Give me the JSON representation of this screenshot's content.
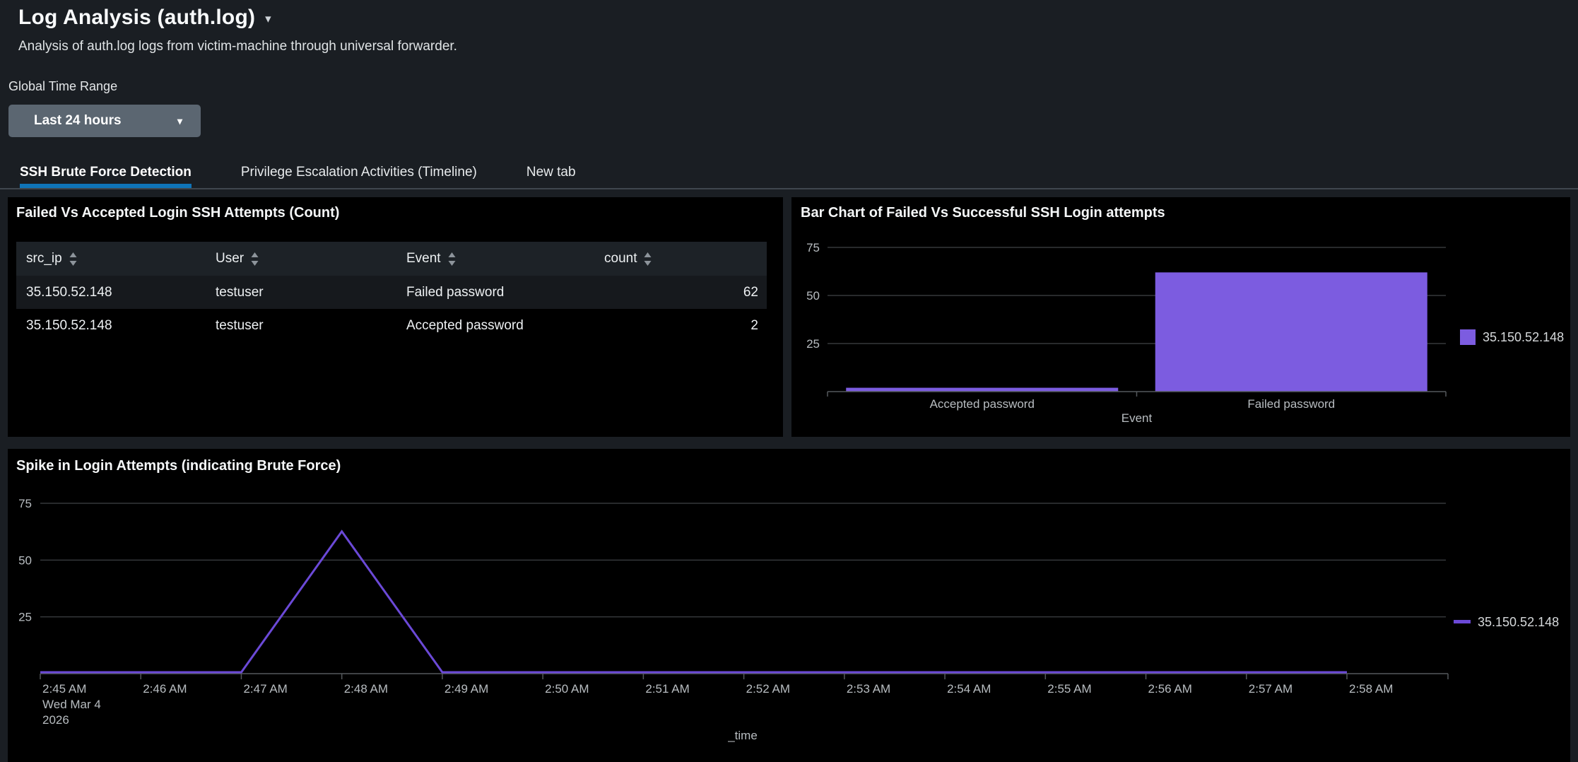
{
  "header": {
    "title": "Log Analysis (auth.log)",
    "subtitle": "Analysis of auth.log logs from victim-machine through universal forwarder.",
    "time_range_label": "Global Time Range",
    "time_range_value": "Last 24 hours"
  },
  "icons": {
    "title_caret": "▾",
    "dropdown_caret": "▾"
  },
  "tabs": [
    {
      "label": "SSH Brute Force Detection",
      "active": true
    },
    {
      "label": "Privilege Escalation Activities (Timeline)",
      "active": false
    },
    {
      "label": "New tab",
      "active": false
    }
  ],
  "colors": {
    "tab_accent_blue": "#0f74b8",
    "bar_purple": "#7c5ce0",
    "line_purple": "#6b49d7",
    "panel_background": "#000000",
    "page_background": "#1a1e23"
  },
  "panels": {
    "table_panel": {
      "title": "Failed Vs Accepted Login SSH Attempts (Count)",
      "columns": [
        "src_ip",
        "User",
        "Event",
        "count"
      ],
      "rows": [
        [
          "35.150.52.148",
          "testuser",
          "Failed password",
          "62"
        ],
        [
          "35.150.52.148",
          "testuser",
          "Accepted password",
          "2"
        ]
      ]
    }
  },
  "chart_data": [
    {
      "type": "bar",
      "title": "Bar Chart of Failed Vs Successful SSH Login attempts",
      "categories": [
        "Accepted password",
        "Failed password"
      ],
      "series": [
        {
          "name": "35.150.52.148",
          "values": [
            2,
            62
          ]
        }
      ],
      "xlabel": "Event",
      "ylabel": "",
      "yticks": [
        25,
        50,
        75
      ],
      "ylim": [
        0,
        80
      ],
      "grid": "horizontal",
      "legend_position": "right",
      "color": "#7c5ce0"
    },
    {
      "type": "line",
      "title": "Spike in Login Attempts (indicating Brute Force)",
      "x": [
        "2:45 AM",
        "2:46 AM",
        "2:47 AM",
        "2:48 AM",
        "2:49 AM",
        "2:50 AM",
        "2:51 AM",
        "2:52 AM",
        "2:53 AM",
        "2:54 AM",
        "2:55 AM",
        "2:56 AM",
        "2:57 AM",
        "2:58 AM"
      ],
      "x_date_label": [
        "Wed Mar 4",
        "2026"
      ],
      "series": [
        {
          "name": "35.150.52.148",
          "values": [
            0,
            0,
            0,
            62,
            0,
            0,
            0,
            0,
            0,
            0,
            0,
            0,
            0,
            0
          ]
        }
      ],
      "xlabel": "_time",
      "ylabel": "",
      "yticks": [
        25,
        50,
        75
      ],
      "ylim": [
        0,
        78
      ],
      "grid": "horizontal",
      "legend_position": "right",
      "color": "#6b49d7"
    }
  ]
}
